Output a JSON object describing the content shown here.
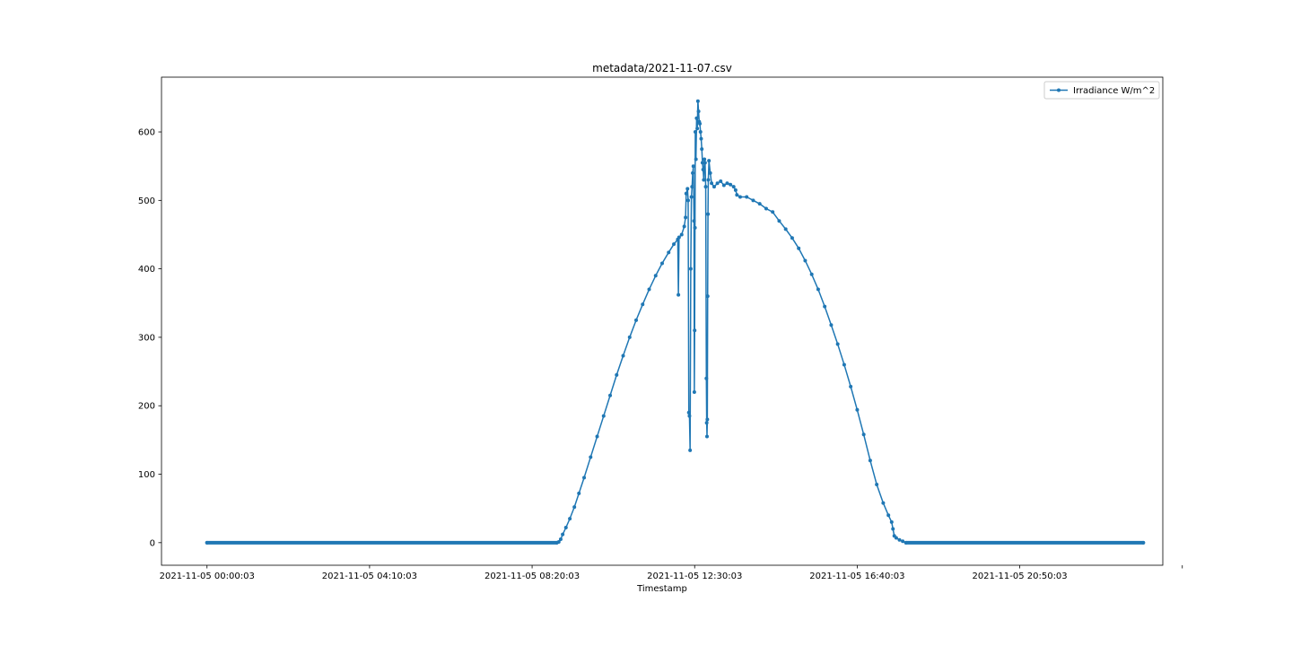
{
  "chart_data": {
    "type": "line",
    "title": "metadata/2021-11-07.csv",
    "xlabel": "Timestamp",
    "ylabel": "",
    "x_unit": "minutes",
    "xlim": [
      -70,
      1470
    ],
    "ylim": [
      -33,
      680
    ],
    "x_ticks": [
      {
        "value": 0,
        "label": "2021-11-05 00:00:03"
      },
      {
        "value": 250,
        "label": "2021-11-05 04:10:03"
      },
      {
        "value": 500,
        "label": "2021-11-05 08:20:03"
      },
      {
        "value": 750,
        "label": "2021-11-05 12:30:03"
      },
      {
        "value": 1000,
        "label": "2021-11-05 16:40:03"
      },
      {
        "value": 1250,
        "label": "2021-11-05 20:50:03"
      },
      {
        "value": 1500,
        "label": ""
      }
    ],
    "y_ticks": [
      0,
      100,
      200,
      300,
      400,
      500,
      600
    ],
    "grid": false,
    "legend_position": "top-right",
    "series": [
      {
        "name": "Irradiance W/m^2",
        "color": "#1f77b4",
        "points": [
          [
            0,
            0
          ],
          [
            538,
            0
          ],
          [
            541,
            1
          ],
          [
            544,
            5
          ],
          [
            547,
            12
          ],
          [
            552,
            22
          ],
          [
            558,
            35
          ],
          [
            565,
            52
          ],
          [
            572,
            72
          ],
          [
            580,
            95
          ],
          [
            590,
            125
          ],
          [
            600,
            155
          ],
          [
            610,
            185
          ],
          [
            620,
            215
          ],
          [
            630,
            245
          ],
          [
            640,
            273
          ],
          [
            650,
            300
          ],
          [
            660,
            325
          ],
          [
            670,
            348
          ],
          [
            680,
            370
          ],
          [
            690,
            390
          ],
          [
            700,
            408
          ],
          [
            710,
            424
          ],
          [
            718,
            436
          ],
          [
            724,
            443
          ],
          [
            725,
            362
          ],
          [
            726,
            446
          ],
          [
            730,
            450
          ],
          [
            734,
            462
          ],
          [
            736,
            475
          ],
          [
            737,
            510
          ],
          [
            739,
            517
          ],
          [
            740,
            500
          ],
          [
            741,
            190
          ],
          [
            742,
            185
          ],
          [
            743,
            135
          ],
          [
            744,
            400
          ],
          [
            745,
            505
          ],
          [
            746,
            520
          ],
          [
            747,
            540
          ],
          [
            748,
            550
          ],
          [
            749,
            470
          ],
          [
            749.5,
            220
          ],
          [
            750,
            310
          ],
          [
            750.5,
            460
          ],
          [
            751,
            600
          ],
          [
            752,
            560
          ],
          [
            753,
            620
          ],
          [
            754,
            605
          ],
          [
            755,
            645
          ],
          [
            756,
            630
          ],
          [
            757,
            615
          ],
          [
            758,
            612
          ],
          [
            759,
            600
          ],
          [
            760,
            590
          ],
          [
            761,
            575
          ],
          [
            762,
            555
          ],
          [
            763,
            545
          ],
          [
            764,
            530
          ],
          [
            765,
            560
          ],
          [
            766,
            555
          ],
          [
            767,
            520
          ],
          [
            768,
            240
          ],
          [
            768.5,
            175
          ],
          [
            769,
            155
          ],
          [
            769.5,
            180
          ],
          [
            770,
            360
          ],
          [
            770.5,
            480
          ],
          [
            771,
            530
          ],
          [
            772,
            558
          ],
          [
            774,
            540
          ],
          [
            776,
            525
          ],
          [
            780,
            520
          ],
          [
            785,
            525
          ],
          [
            790,
            528
          ],
          [
            795,
            522
          ],
          [
            800,
            525
          ],
          [
            805,
            523
          ],
          [
            810,
            520
          ],
          [
            813,
            515
          ],
          [
            815,
            508
          ],
          [
            820,
            505
          ],
          [
            830,
            505
          ],
          [
            840,
            500
          ],
          [
            850,
            495
          ],
          [
            860,
            488
          ],
          [
            870,
            483
          ],
          [
            880,
            470
          ],
          [
            890,
            458
          ],
          [
            900,
            445
          ],
          [
            910,
            430
          ],
          [
            920,
            412
          ],
          [
            930,
            392
          ],
          [
            940,
            370
          ],
          [
            950,
            345
          ],
          [
            960,
            318
          ],
          [
            970,
            290
          ],
          [
            980,
            260
          ],
          [
            990,
            228
          ],
          [
            1000,
            194
          ],
          [
            1010,
            158
          ],
          [
            1020,
            120
          ],
          [
            1030,
            85
          ],
          [
            1040,
            58
          ],
          [
            1048,
            40
          ],
          [
            1053,
            30
          ],
          [
            1055,
            20
          ],
          [
            1057,
            10
          ],
          [
            1060,
            7
          ],
          [
            1065,
            4
          ],
          [
            1070,
            2
          ],
          [
            1075,
            0
          ],
          [
            1440,
            0
          ]
        ]
      }
    ]
  }
}
